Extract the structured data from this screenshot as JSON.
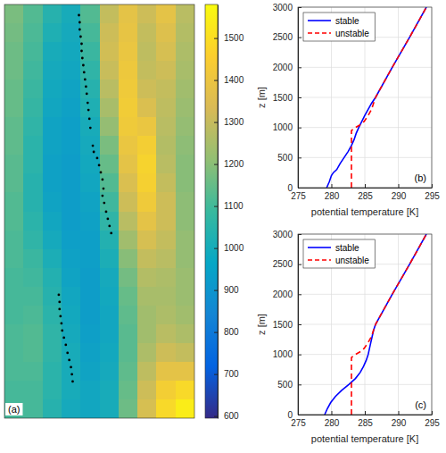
{
  "chart_data": [
    {
      "type": "heatmap",
      "label": "(a)",
      "xlim": [
        0,
        10
      ],
      "ylim": [
        0,
        22
      ],
      "tick_labels": false,
      "cells": [
        [
          1180,
          1120,
          1040,
          1000,
          1120,
          1300,
          1380,
          1320,
          1380,
          1280
        ],
        [
          1170,
          1110,
          1020,
          990,
          1100,
          1320,
          1390,
          1300,
          1360,
          1270
        ],
        [
          1160,
          1100,
          1000,
          980,
          1080,
          1330,
          1400,
          1290,
          1340,
          1260
        ],
        [
          1160,
          1090,
          990,
          970,
          1060,
          1310,
          1410,
          1300,
          1320,
          1250
        ],
        [
          1150,
          1080,
          980,
          960,
          1040,
          1280,
          1420,
          1320,
          1300,
          1240
        ],
        [
          1150,
          1070,
          970,
          950,
          1020,
          1250,
          1430,
          1350,
          1290,
          1230
        ],
        [
          1140,
          1060,
          960,
          940,
          1000,
          1220,
          1420,
          1400,
          1280,
          1220
        ],
        [
          1140,
          1050,
          960,
          940,
          990,
          1180,
          1400,
          1440,
          1270,
          1210
        ],
        [
          1130,
          1050,
          950,
          930,
          980,
          1150,
          1380,
          1460,
          1280,
          1200
        ],
        [
          1130,
          1040,
          950,
          930,
          970,
          1120,
          1350,
          1450,
          1300,
          1200
        ],
        [
          1120,
          1040,
          960,
          930,
          960,
          1090,
          1320,
          1420,
          1320,
          1210
        ],
        [
          1120,
          1050,
          970,
          930,
          950,
          1060,
          1280,
          1380,
          1320,
          1210
        ],
        [
          1110,
          1060,
          990,
          940,
          940,
          1030,
          1240,
          1340,
          1300,
          1220
        ],
        [
          1110,
          1080,
          1010,
          950,
          940,
          1010,
          1200,
          1300,
          1280,
          1220
        ],
        [
          1100,
          1090,
          1030,
          960,
          930,
          990,
          1170,
          1270,
          1260,
          1230
        ],
        [
          1100,
          1100,
          1040,
          970,
          930,
          980,
          1150,
          1250,
          1250,
          1230
        ],
        [
          1100,
          1110,
          1050,
          980,
          930,
          970,
          1140,
          1240,
          1260,
          1240
        ],
        [
          1110,
          1120,
          1060,
          990,
          940,
          970,
          1130,
          1240,
          1280,
          1260
        ],
        [
          1110,
          1120,
          1060,
          1000,
          950,
          980,
          1130,
          1260,
          1320,
          1300
        ],
        [
          1110,
          1110,
          1050,
          1000,
          960,
          990,
          1140,
          1290,
          1380,
          1380
        ],
        [
          1100,
          1100,
          1050,
          1000,
          970,
          1000,
          1150,
          1320,
          1440,
          1480
        ],
        [
          1100,
          1100,
          1040,
          990,
          970,
          1000,
          1160,
          1340,
          1480,
          1540
        ]
      ],
      "colorbar": {
        "range": [
          595,
          1580
        ],
        "ticks": [
          600,
          700,
          800,
          900,
          1000,
          1100,
          1200,
          1300,
          1400,
          1500
        ]
      },
      "points": {
        "color": "#000000",
        "marker": "circle",
        "x": [
          3.92,
          3.96,
          3.96,
          4.01,
          4.06,
          4.06,
          4.1,
          4.15,
          4.19,
          4.24,
          4.29,
          4.33,
          4.38,
          4.42,
          4.47,
          4.52,
          4.65,
          4.7,
          4.88,
          4.98,
          5.07,
          5.16,
          5.21,
          5.16,
          5.25,
          5.35,
          5.44,
          5.53,
          5.62,
          2.86,
          2.9,
          2.9,
          2.95,
          3.0,
          3.04,
          3.13,
          3.23,
          3.32,
          3.41,
          3.5,
          3.55,
          3.59
        ],
        "y": [
          0.57,
          0.95,
          1.33,
          1.71,
          2.09,
          2.47,
          2.85,
          3.23,
          3.61,
          3.99,
          4.37,
          4.75,
          5.23,
          5.61,
          6.08,
          6.56,
          7.51,
          7.84,
          8.17,
          8.55,
          8.93,
          9.31,
          9.79,
          10.17,
          10.55,
          11.02,
          11.4,
          11.78,
          12.16,
          15.44,
          15.82,
          16.2,
          16.58,
          16.96,
          17.34,
          17.72,
          18.1,
          18.53,
          18.91,
          19.29,
          19.67,
          20.05
        ]
      }
    },
    {
      "type": "line",
      "label": "(b)",
      "x_label": "potential temperature [K]",
      "y_label": "z [m]",
      "xlim": [
        275,
        295
      ],
      "xticks": [
        275,
        280,
        285,
        290,
        295
      ],
      "ylim": [
        0,
        3000
      ],
      "yticks": [
        0,
        500,
        1000,
        1500,
        2000,
        2500,
        3000
      ],
      "grid": true,
      "legend": "upper left",
      "series": [
        {
          "name": "stable",
          "color": "#0000ff",
          "line_style": "solid",
          "x": [
            279.3,
            279.7,
            280.0,
            280.3,
            280.8,
            281.3,
            281.9,
            282.5,
            283.0,
            283.4,
            283.7,
            284.1,
            285.0,
            286.0,
            286.6,
            289.1,
            291.7,
            294.2
          ],
          "values": [
            0,
            100,
            200,
            250,
            300,
            400,
            500,
            600,
            700,
            800,
            900,
            1000,
            1200,
            1400,
            1500,
            2000,
            2500,
            3000
          ]
        },
        {
          "name": "unstable",
          "color": "#ff0000",
          "line_style": "dashed",
          "x": [
            283.0,
            283.0,
            283.0,
            283.6,
            284.4,
            284.9,
            285.5,
            286.0,
            286.3,
            286.6,
            289.1,
            291.7,
            294.2
          ],
          "values": [
            0,
            500,
            950,
            1000,
            1050,
            1100,
            1200,
            1300,
            1400,
            1500,
            2000,
            2500,
            3000
          ]
        }
      ]
    },
    {
      "type": "line",
      "label": "(c)",
      "x_label": "potential temperature [K]",
      "y_label": "z [m]",
      "xlim": [
        275,
        295
      ],
      "xticks": [
        275,
        280,
        285,
        290,
        295
      ],
      "ylim": [
        0,
        3000
      ],
      "yticks": [
        0,
        500,
        1000,
        1500,
        2000,
        2500,
        3000
      ],
      "grid": true,
      "legend": "upper left",
      "series": [
        {
          "name": "stable",
          "color": "#0000ff",
          "line_style": "solid",
          "x": [
            279.0,
            279.4,
            279.9,
            280.6,
            281.5,
            282.6,
            283.6,
            284.3,
            284.8,
            285.2,
            285.5,
            285.7,
            285.9,
            286.1,
            286.3,
            286.6,
            289.1,
            291.7,
            294.2
          ],
          "values": [
            0,
            100,
            200,
            300,
            400,
            500,
            600,
            700,
            800,
            900,
            1000,
            1100,
            1200,
            1300,
            1400,
            1500,
            2000,
            2500,
            3000
          ]
        },
        {
          "name": "unstable",
          "color": "#ff0000",
          "line_style": "dashed",
          "x": [
            283.0,
            283.0,
            283.0,
            283.6,
            284.4,
            284.9,
            285.5,
            286.0,
            286.3,
            286.6,
            289.1,
            291.7,
            294.2
          ],
          "values": [
            0,
            500,
            950,
            1000,
            1050,
            1100,
            1200,
            1300,
            1400,
            1500,
            2000,
            2500,
            3000
          ]
        }
      ]
    }
  ]
}
